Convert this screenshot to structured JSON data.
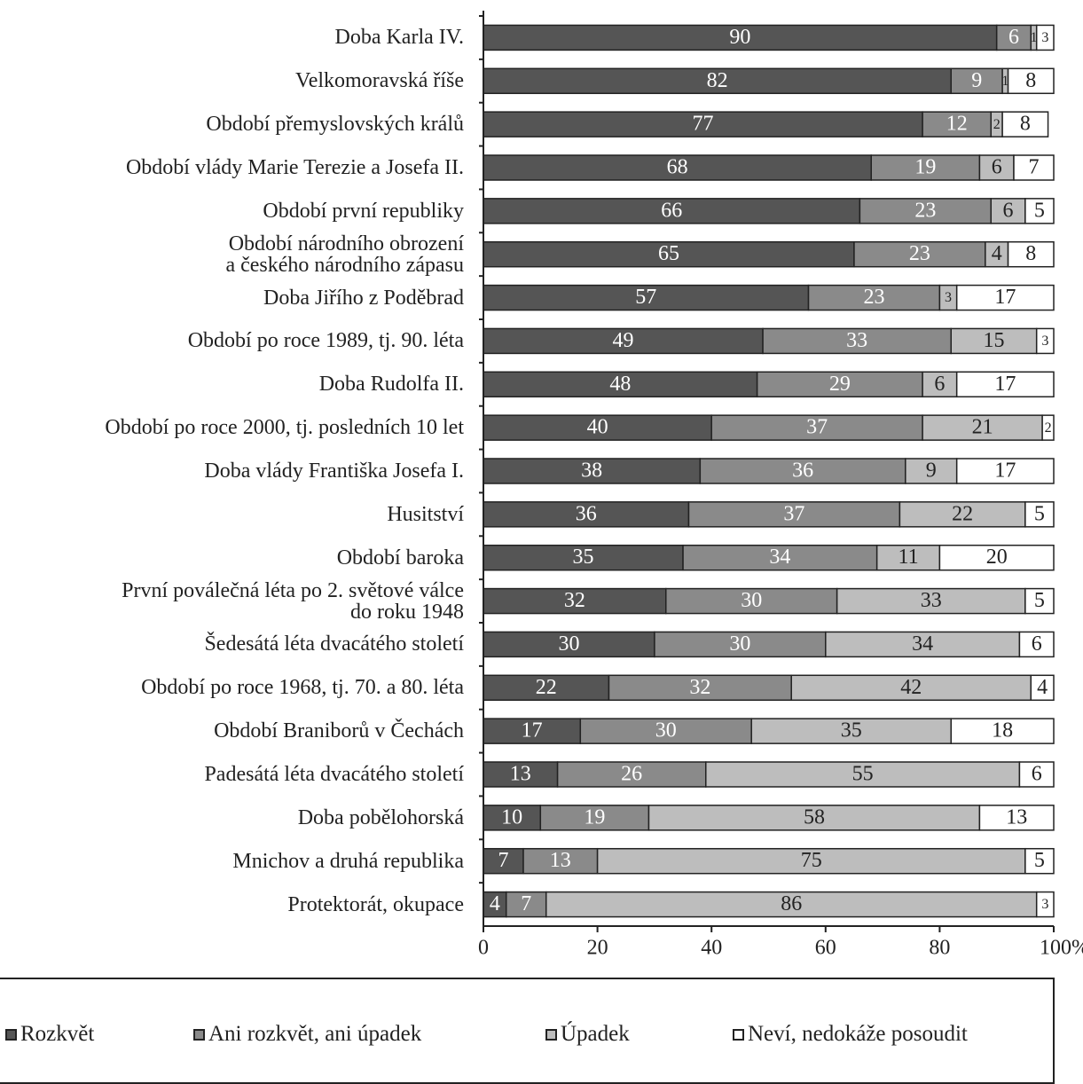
{
  "chart_data": {
    "type": "stacked_barh",
    "categories": [
      "Doba Karla IV.",
      "Velkomoravská říše",
      "Období přemyslovských králů",
      "Období vlády Marie Terezie a Josefa II.",
      "Období první republiky",
      "Období národního obrození\na českého národního zápasu",
      "Doba Jiřího z Poděbrad",
      "Období po roce 1989, tj. 90. léta",
      "Doba Rudolfa II.",
      "Období po roce 2000, tj. posledních 10 let",
      "Doba vlády Františka Josefa I.",
      "Husitství",
      "Období baroka",
      "První poválečná léta po 2. světové válce\ndo roku 1948",
      "Šedesátá léta dvacátého století",
      "Období po roce 1968, tj. 70. a 80. léta",
      "Období Braniborů v Čechách",
      "Padesátá léta dvacátého století",
      "Doba pobělohorská",
      "Mnichov a druhá republika",
      "Protektorát, okupace"
    ],
    "series": [
      {
        "name": "Rozkvět",
        "color": "#555555",
        "values": [
          90,
          82,
          77,
          68,
          66,
          65,
          57,
          49,
          48,
          40,
          38,
          36,
          35,
          32,
          30,
          22,
          17,
          13,
          10,
          7,
          4
        ]
      },
      {
        "name": "Ani rozkvět, ani úpadek",
        "color": "#8a8a8a",
        "values": [
          6,
          9,
          12,
          19,
          23,
          23,
          23,
          33,
          29,
          37,
          36,
          37,
          34,
          30,
          30,
          32,
          30,
          26,
          19,
          13,
          7
        ]
      },
      {
        "name": "Úpadek",
        "color": "#bdbdbd",
        "values": [
          1,
          1,
          2,
          6,
          6,
          4,
          3,
          15,
          6,
          21,
          9,
          22,
          11,
          33,
          34,
          42,
          35,
          55,
          58,
          75,
          86
        ]
      },
      {
        "name": "Neví, nedokáže posoudit",
        "color": "#ffffff",
        "values": [
          3,
          8,
          8,
          7,
          5,
          8,
          17,
          3,
          17,
          2,
          17,
          5,
          20,
          5,
          6,
          4,
          18,
          6,
          13,
          5,
          3
        ]
      }
    ],
    "xlim": [
      0,
      100
    ],
    "xticks": [
      0,
      20,
      40,
      60,
      80,
      {
        "value": 100,
        "label": "100%"
      }
    ]
  }
}
